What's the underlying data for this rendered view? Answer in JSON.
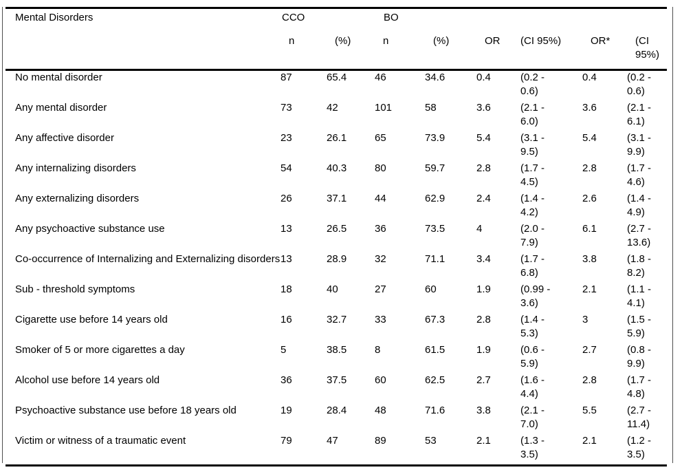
{
  "table": {
    "first_col_header": "Mental Disorders",
    "groups": {
      "cco": "CCO",
      "bo": "BO"
    },
    "sub_headers": [
      "n",
      "(%)",
      "n",
      "(%)",
      "OR",
      "(CI 95%)",
      "OR*",
      "(CI 95%)"
    ],
    "rows": [
      {
        "label": "No mental disorder",
        "cco_n": "87",
        "cco_pct": "65.4",
        "bo_n": "46",
        "bo_pct": "34.6",
        "or_crude": "0.4",
        "ci_crude": "(0.2 - 0.6)",
        "or_adj": "0.4",
        "ci_adj": "(0.2 - 0.6)"
      },
      {
        "label": "Any mental disorder",
        "cco_n": "73",
        "cco_pct": "42",
        "bo_n": "101",
        "bo_pct": "58",
        "or_crude": "3.6",
        "ci_crude": "(2.1 - 6.0)",
        "or_adj": "3.6",
        "ci_adj": "(2.1 - 6.1)"
      },
      {
        "label": "Any affective disorder",
        "cco_n": "23",
        "cco_pct": "26.1",
        "bo_n": "65",
        "bo_pct": "73.9",
        "or_crude": "5.4",
        "ci_crude": "(3.1 - 9.5)",
        "or_adj": "5.4",
        "ci_adj": "(3.1 - 9.9)"
      },
      {
        "label": "Any internalizing disorders",
        "cco_n": "54",
        "cco_pct": "40.3",
        "bo_n": "80",
        "bo_pct": "59.7",
        "or_crude": "2.8",
        "ci_crude": "(1.7 - 4.5)",
        "or_adj": "2.8",
        "ci_adj": "(1.7 - 4.6)"
      },
      {
        "label": "Any externalizing disorders",
        "cco_n": "26",
        "cco_pct": "37.1",
        "bo_n": "44",
        "bo_pct": "62.9",
        "or_crude": "2.4",
        "ci_crude": "(1.4 - 4.2)",
        "or_adj": "2.6",
        "ci_adj": "(1.4 - 4.9)"
      },
      {
        "label": "Any psychoactive substance use",
        "cco_n": "13",
        "cco_pct": "26.5",
        "bo_n": "36",
        "bo_pct": "73.5",
        "or_crude": "4",
        "ci_crude": "(2.0 - 7.9)",
        "or_adj": "6.1",
        "ci_adj": "(2.7 - 13.6)"
      },
      {
        "label": "Co-occurrence of Internalizing and Externalizing disorders",
        "cco_n": "13",
        "cco_pct": "28.9",
        "bo_n": "32",
        "bo_pct": "71.1",
        "or_crude": "3.4",
        "ci_crude": "(1.7 - 6.8)",
        "or_adj": "3.8",
        "ci_adj": "(1.8 - 8.2)"
      },
      {
        "label": "Sub - threshold symptoms",
        "cco_n": "18",
        "cco_pct": "40",
        "bo_n": "27",
        "bo_pct": "60",
        "or_crude": "1.9",
        "ci_crude": "(0.99 - 3.6)",
        "or_adj": "2.1",
        "ci_adj": "(1.1 - 4.1)"
      },
      {
        "label": "Cigarette use before 14 years old",
        "cco_n": "16",
        "cco_pct": "32.7",
        "bo_n": "33",
        "bo_pct": "67.3",
        "or_crude": "2.8",
        "ci_crude": "(1.4 - 5.3)",
        "or_adj": "3",
        "ci_adj": "(1.5 - 5.9)"
      },
      {
        "label": "Smoker of 5 or more cigarettes a day",
        "cco_n": "5",
        "cco_pct": "38.5",
        "bo_n": "8",
        "bo_pct": "61.5",
        "or_crude": "1.9",
        "ci_crude": "(0.6 - 5.9)",
        "or_adj": "2.7",
        "ci_adj": "(0.8 - 9.9)"
      },
      {
        "label": "Alcohol use before 14 years old",
        "cco_n": "36",
        "cco_pct": "37.5",
        "bo_n": "60",
        "bo_pct": "62.5",
        "or_crude": "2.7",
        "ci_crude": "(1.6 - 4.4)",
        "or_adj": "2.8",
        "ci_adj": "(1.7 - 4.8)"
      },
      {
        "label": "Psychoactive substance use before 18 years old",
        "cco_n": "19",
        "cco_pct": "28.4",
        "bo_n": "48",
        "bo_pct": "71.6",
        "or_crude": "3.8",
        "ci_crude": "(2.1 - 7.0)",
        "or_adj": "5.5",
        "ci_adj": "(2.7 - 11.4)"
      },
      {
        "label": "Victim or witness of a traumatic event",
        "cco_n": "79",
        "cco_pct": "47",
        "bo_n": "89",
        "bo_pct": "53",
        "or_crude": "2.1",
        "ci_crude": "(1.3 - 3.5)",
        "or_adj": "2.1",
        "ci_adj": "(1.2 - 3.5)"
      }
    ]
  }
}
